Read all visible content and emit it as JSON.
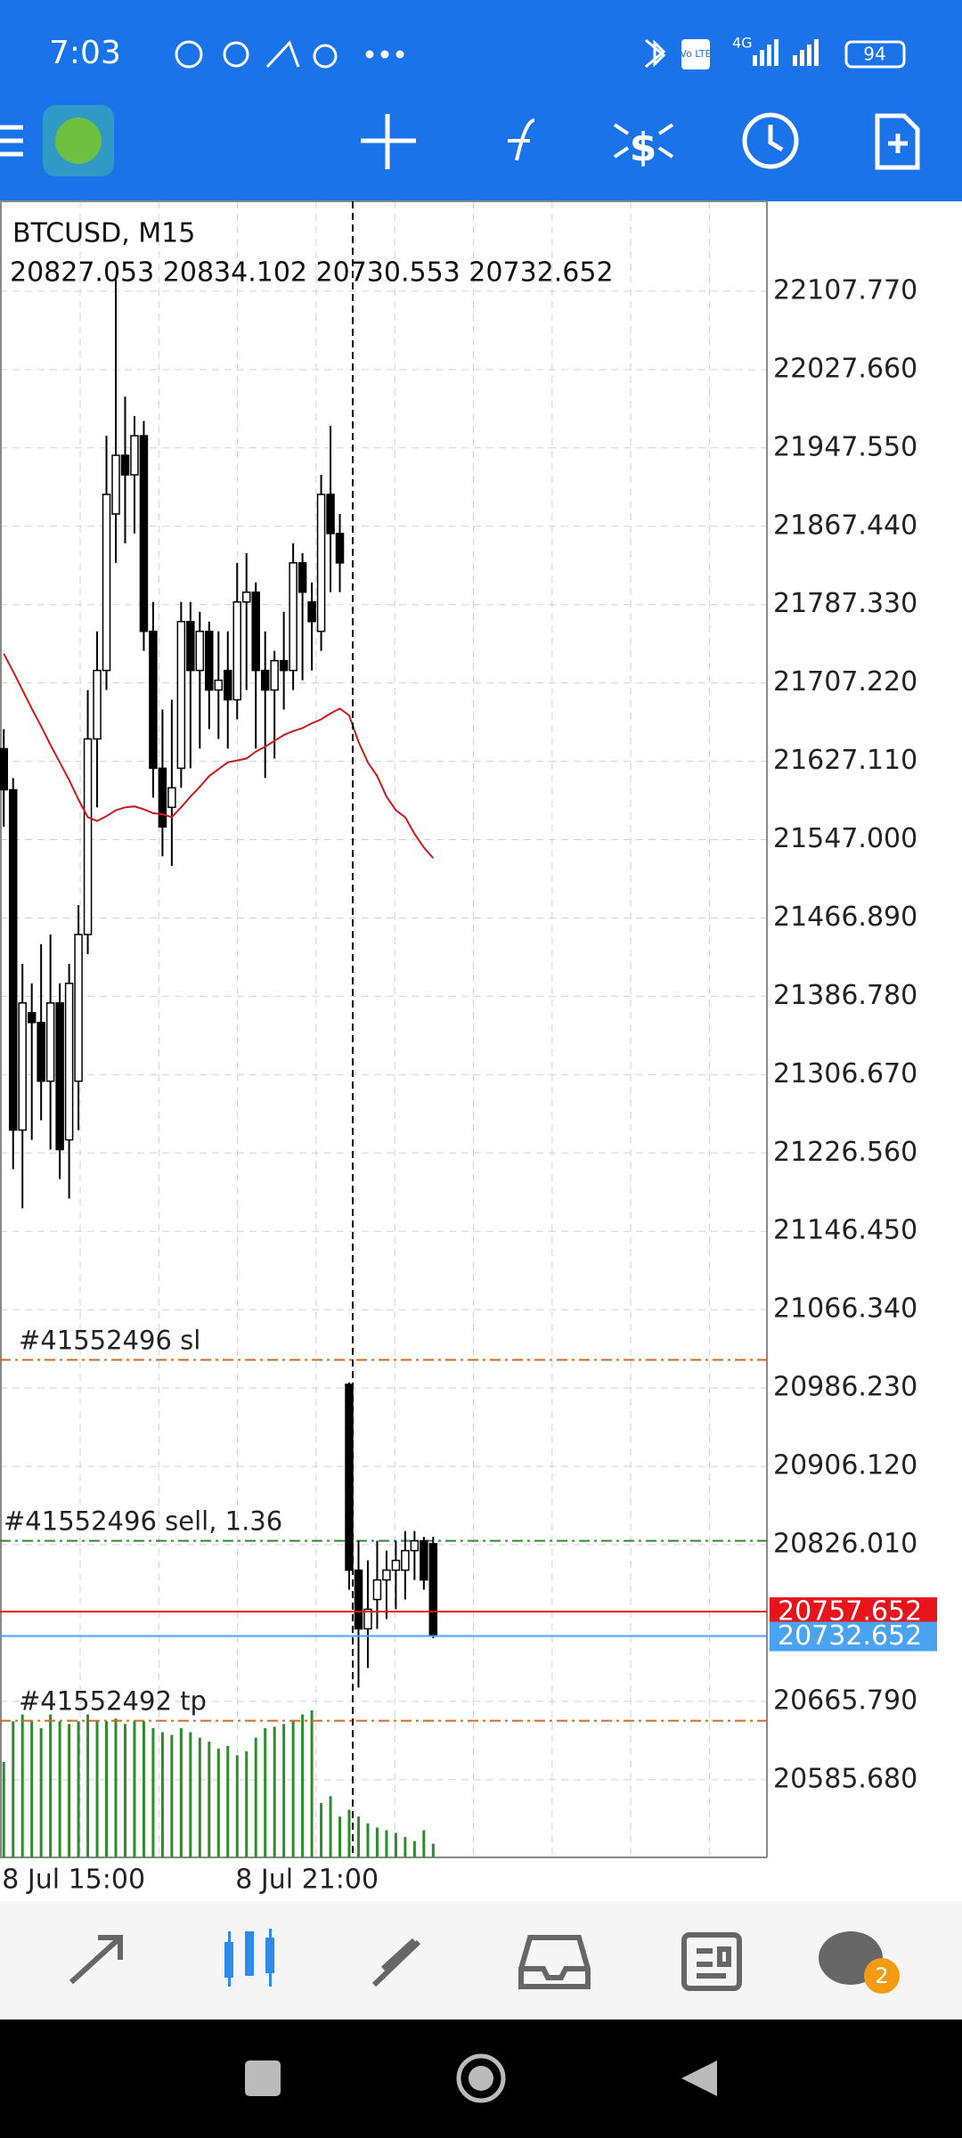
{
  "status_bar": {
    "time": "7:03",
    "volte": "Vo LTE",
    "network": "4G",
    "battery": "94"
  },
  "bottom_nav": {
    "chat_badge": "2"
  },
  "chart_data": {
    "type": "candlestick",
    "title": "BTCUSD, M15",
    "subtitle": "20827.053 20834.102 20730.553 20732.652",
    "categories": [
      "8 Jul 15:00",
      null,
      null,
      null,
      null,
      null,
      null,
      null,
      null,
      null,
      null,
      null,
      null,
      null,
      null,
      null,
      null,
      null,
      null,
      null,
      null,
      null,
      null,
      null,
      null,
      "8 Jul 21:00",
      null,
      null,
      null,
      null,
      null,
      null,
      null,
      null,
      null,
      null,
      null,
      null,
      null,
      null,
      null,
      null,
      null,
      null,
      null,
      null,
      null
    ],
    "open": [
      21640,
      21598,
      21250,
      21370,
      21360,
      21300,
      21380,
      21240,
      21300,
      21450,
      21650,
      21720,
      21880,
      21940,
      21920,
      21960,
      21760,
      21620,
      21580,
      21620,
      21770,
      21720,
      21760,
      21700,
      21720,
      21690,
      21790,
      21800,
      21720,
      21700,
      21730,
      21720,
      21830,
      21790,
      21760,
      21900,
      21860,
      20990,
      20800,
      20740,
      20770,
      20790,
      20800,
      20800,
      20820,
      20830,
      20827.053
    ],
    "high": [
      21660,
      21610,
      21420,
      21400,
      21440,
      21450,
      21400,
      21420,
      21480,
      21700,
      21760,
      21960,
      22120,
      22000,
      21980,
      21975,
      21790,
      21680,
      21690,
      21790,
      21790,
      21780,
      21770,
      21760,
      21760,
      21830,
      21840,
      21810,
      21760,
      21740,
      21780,
      21850,
      21840,
      21810,
      21920,
      21970,
      21880,
      20992,
      20830,
      20810,
      20830,
      20820,
      20830,
      20840,
      20840,
      20834,
      20834.102
    ],
    "low": [
      21560,
      21210,
      21170,
      21240,
      21260,
      21230,
      21200,
      21180,
      21250,
      21430,
      21580,
      21700,
      21830,
      21850,
      21860,
      21740,
      21590,
      21530,
      21520,
      21600,
      21620,
      21640,
      21660,
      21650,
      21640,
      21670,
      21700,
      21640,
      21610,
      21630,
      21680,
      21700,
      21710,
      21720,
      21740,
      21800,
      21800,
      20780,
      20680,
      20700,
      20740,
      20750,
      20760,
      20770,
      20790,
      20780,
      20730.553
    ],
    "close": [
      21598,
      21250,
      21380,
      21360,
      21300,
      21380,
      21230,
      21400,
      21450,
      21650,
      21720,
      21900,
      21940,
      21920,
      21960,
      21760,
      21620,
      21560,
      21600,
      21770,
      21720,
      21760,
      21700,
      21710,
      21690,
      21790,
      21800,
      21720,
      21700,
      21730,
      21720,
      21830,
      21800,
      21770,
      21900,
      21860,
      21830,
      20800,
      20740,
      20760,
      20790,
      20800,
      20810,
      20820,
      20830,
      20790,
      20732.652
    ],
    "up_color": "#ffffff",
    "down_color": "#000000",
    "moving_average": {
      "color": "#cc1a1a",
      "values": [
        21737,
        21719,
        21700,
        21681,
        21663,
        21644,
        21626,
        21608,
        21588,
        21570,
        21566,
        21571,
        21577,
        21580,
        21581,
        21578,
        21574,
        21573,
        21570,
        21580,
        21591,
        21601,
        21612,
        21619,
        21626,
        21628,
        21630,
        21637,
        21642,
        21648,
        21654,
        21658,
        21661,
        21666,
        21670,
        21676,
        21681,
        21674,
        21647,
        21626,
        21612,
        21591,
        21577,
        21570,
        21553,
        21539,
        21528
      ]
    },
    "volume": {
      "color": "#2e8b2e",
      "values": [
        70,
        100,
        105,
        100,
        95,
        105,
        100,
        98,
        100,
        105,
        100,
        100,
        102,
        98,
        100,
        100,
        95,
        92,
        90,
        95,
        92,
        88,
        85,
        80,
        82,
        75,
        78,
        88,
        95,
        96,
        98,
        100,
        105,
        108,
        40,
        45,
        30,
        35,
        30,
        25,
        22,
        20,
        18,
        15,
        12,
        20,
        10
      ]
    },
    "levels": [
      {
        "label": "#41552496 sl",
        "value": 21015,
        "color": "#d2691e"
      },
      {
        "label": "#41552496 sell, 1.36",
        "value": 20830,
        "color": "#2e8b2e"
      },
      {
        "label": "#41552492 tp",
        "value": 20646,
        "color": "#d2691e"
      }
    ],
    "ask": {
      "value": 20757.652,
      "color": "#e8141c"
    },
    "bid": {
      "value": 20732.652,
      "color": "#4aa3f0"
    },
    "ylim": [
      20506.3,
      22199.7
    ],
    "yticks": [
      {
        "value": 22107.77,
        "label": "22107.770"
      },
      {
        "value": 22027.66,
        "label": "22027.660"
      },
      {
        "value": 21947.55,
        "label": "21947.550"
      },
      {
        "value": 21867.44,
        "label": "21867.440"
      },
      {
        "value": 21787.33,
        "label": "21787.330"
      },
      {
        "value": 21707.22,
        "label": "21707.220"
      },
      {
        "value": 21627.11,
        "label": "21627.110"
      },
      {
        "value": 21547,
        "label": "21547.000"
      },
      {
        "value": 21466.89,
        "label": "21466.890"
      },
      {
        "value": 21386.78,
        "label": "21386.780"
      },
      {
        "value": 21306.67,
        "label": "21306.670"
      },
      {
        "value": 21226.56,
        "label": "21226.560"
      },
      {
        "value": 21146.45,
        "label": "21146.450"
      },
      {
        "value": 21066.34,
        "label": "21066.340"
      },
      {
        "value": 20986.23,
        "label": "20986.230"
      },
      {
        "value": 20906.12,
        "label": "20906.120"
      },
      {
        "value": 20826.01,
        "label": "20826.010"
      },
      {
        "value": 20665.79,
        "label": "20665.790"
      },
      {
        "value": 20585.68,
        "label": "20585.680"
      }
    ],
    "grid": true
  }
}
